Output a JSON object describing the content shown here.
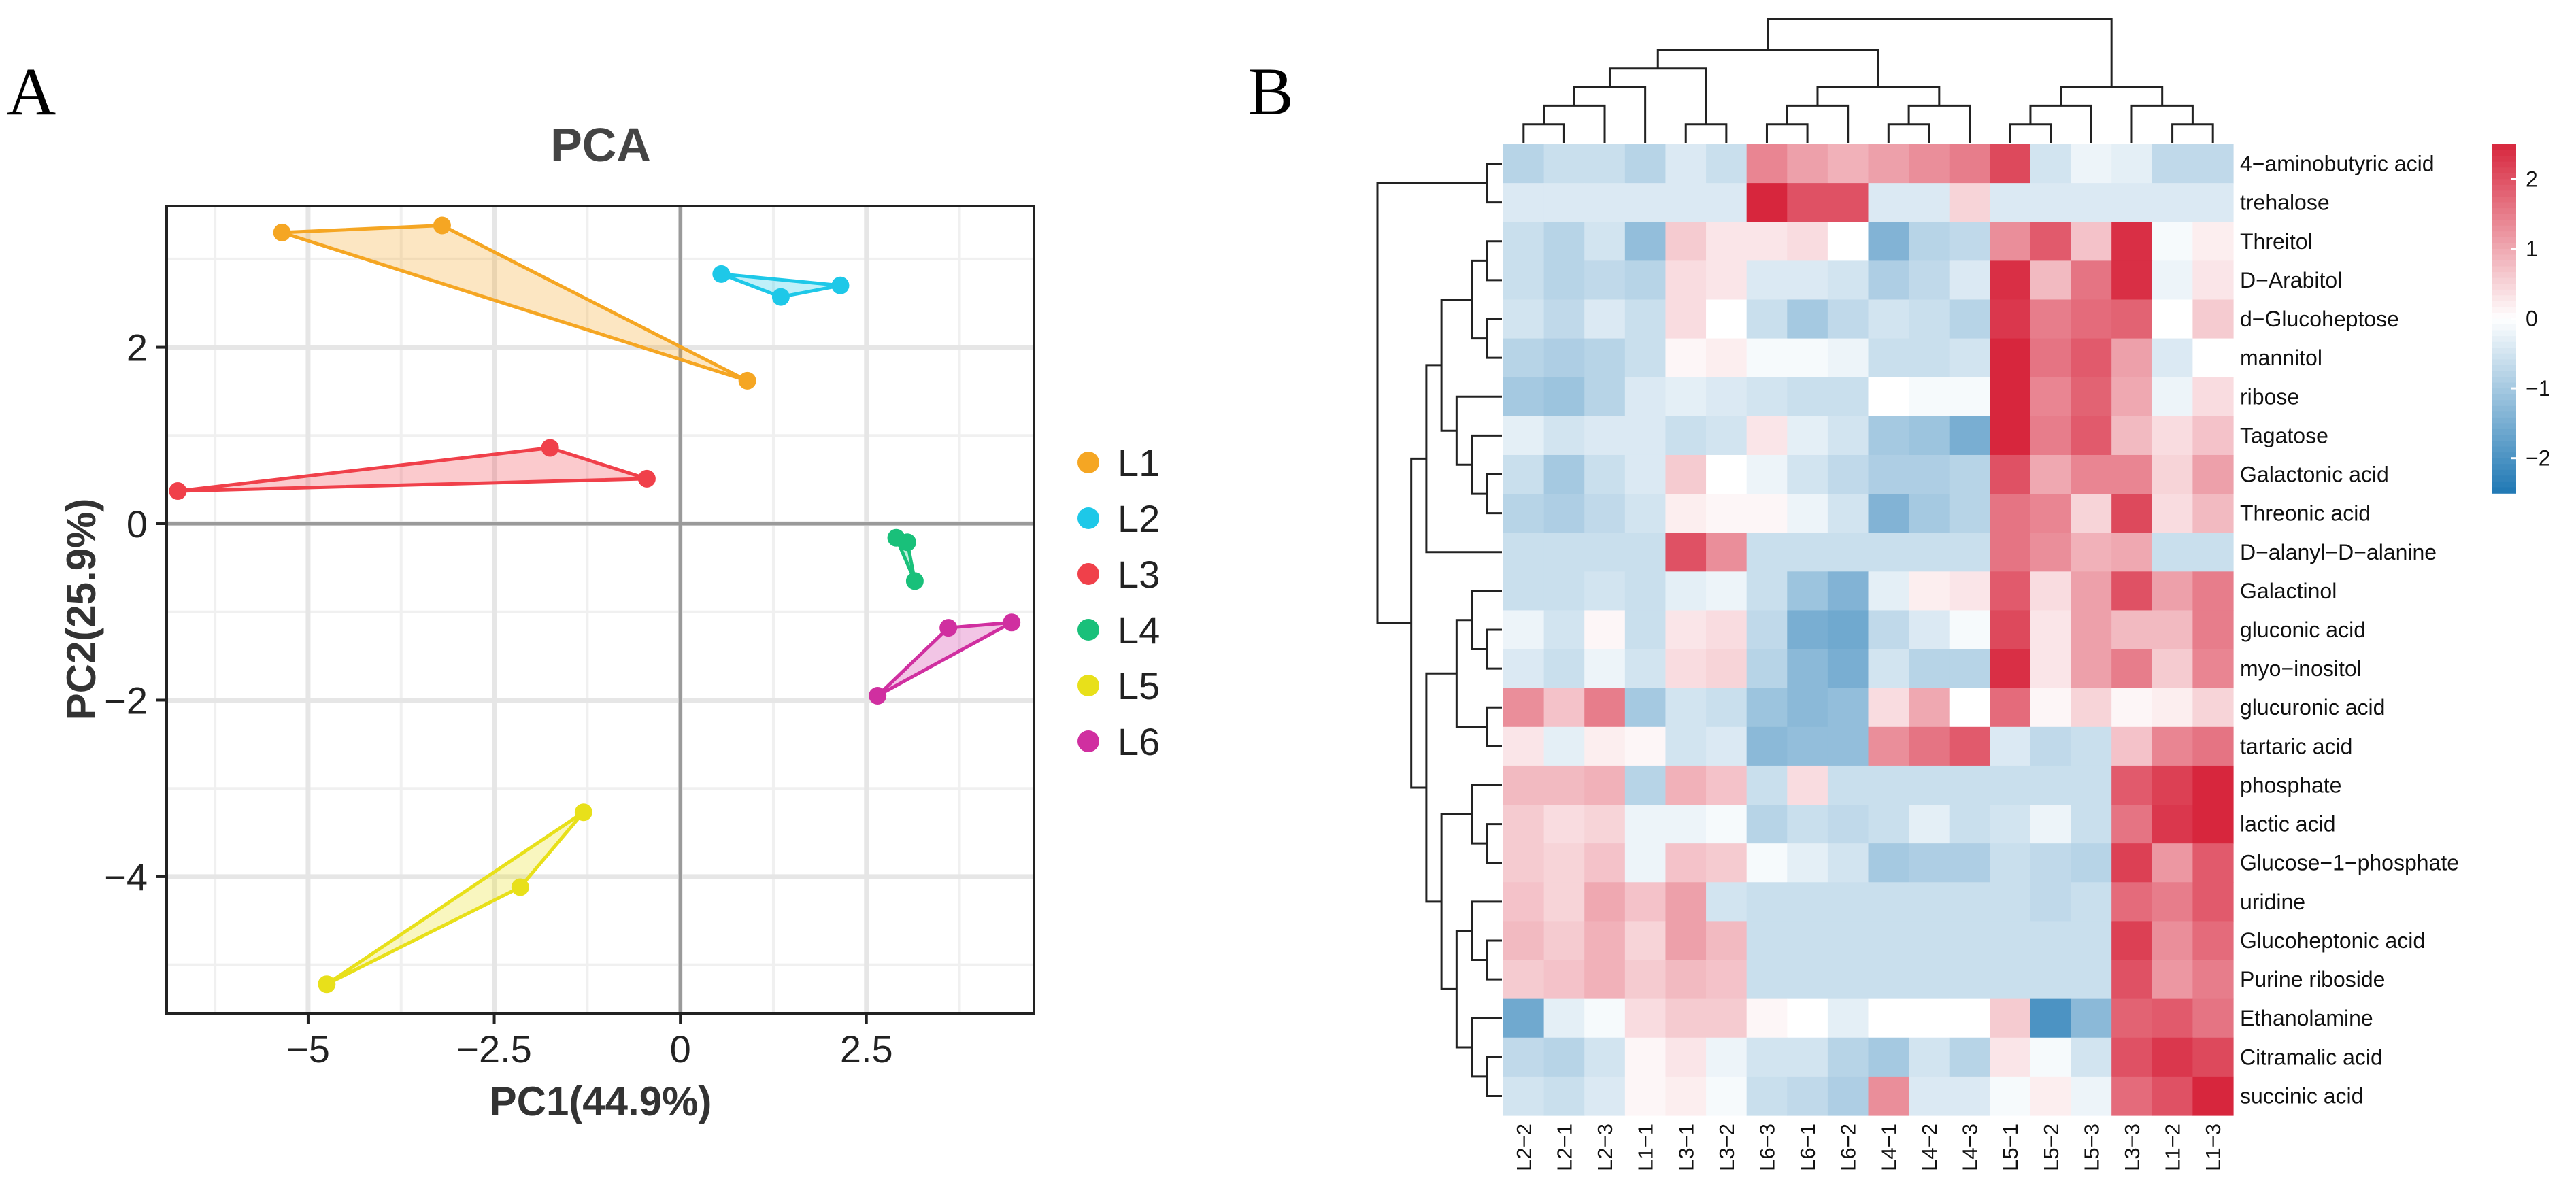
{
  "panels": {
    "a": "A",
    "b": "B"
  },
  "chart_data": [
    {
      "type": "scatter",
      "title": "PCA",
      "xlabel": "PC1(44.9%)",
      "ylabel": "PC2(25.9%)",
      "xlim": [
        -6.9,
        4.75
      ],
      "ylim": [
        -5.55,
        3.6
      ],
      "xticks": [
        -5,
        -2.5,
        0,
        2.5
      ],
      "xtick_labels": [
        "−5",
        "−2.5",
        "0",
        "2.5"
      ],
      "yticks": [
        2,
        0,
        -2,
        -4
      ],
      "ytick_labels": [
        "2",
        "0",
        "−2",
        "−4"
      ],
      "grid": true,
      "legend_position": "right",
      "series": [
        {
          "name": "L1",
          "color": "#F5A623",
          "points": [
            [
              -5.35,
              3.3
            ],
            [
              -3.2,
              3.38
            ],
            [
              0.9,
              1.62
            ]
          ]
        },
        {
          "name": "L2",
          "color": "#1EC8E8",
          "points": [
            [
              0.55,
              2.83
            ],
            [
              2.15,
              2.7
            ],
            [
              1.35,
              2.57
            ]
          ]
        },
        {
          "name": "L3",
          "color": "#F0404A",
          "points": [
            [
              -6.75,
              0.37
            ],
            [
              -1.75,
              0.86
            ],
            [
              -0.45,
              0.51
            ]
          ]
        },
        {
          "name": "L4",
          "color": "#19C07A",
          "points": [
            [
              2.9,
              -0.16
            ],
            [
              3.05,
              -0.21
            ],
            [
              3.15,
              -0.65
            ]
          ]
        },
        {
          "name": "L5",
          "color": "#E8E01A",
          "points": [
            [
              -4.75,
              -5.22
            ],
            [
              -2.15,
              -4.12
            ],
            [
              -1.3,
              -3.27
            ]
          ]
        },
        {
          "name": "L6",
          "color": "#D02FA0",
          "points": [
            [
              2.65,
              -1.95
            ],
            [
              3.6,
              -1.18
            ],
            [
              4.45,
              -1.12
            ]
          ]
        }
      ]
    },
    {
      "type": "heatmap",
      "columns": [
        "L2−2",
        "L2−1",
        "L2−3",
        "L1−1",
        "L3−1",
        "L3−2",
        "L6−3",
        "L6−1",
        "L6−2",
        "L4−1",
        "L4−2",
        "L4−3",
        "L5−1",
        "L5−2",
        "L5−3",
        "L3−3",
        "L1−2",
        "L1−3"
      ],
      "rows": [
        "4−aminobutyric acid",
        "trehalose",
        "Threitol",
        "D−Arabitol",
        "d−Glucoheptose",
        "mannitol",
        "ribose",
        "Tagatose",
        "Galactonic acid",
        "Threonic acid",
        "D−alanyl−D−alanine",
        "Galactinol",
        "gluconic acid",
        "myo−inositol",
        "glucuronic acid",
        "tartaric acid",
        "phosphate",
        "lactic acid",
        "Glucose−1−phosphate",
        "uridine",
        "Glucoheptonic acid",
        "Purine riboside",
        "Ethanolamine",
        "Citramalic acid",
        "succinic acid"
      ],
      "values": [
        [
          -0.8,
          -0.6,
          -0.6,
          -0.8,
          -0.4,
          -0.6,
          1.4,
          1.1,
          0.9,
          1.1,
          1.3,
          1.5,
          2.1,
          -0.5,
          -0.2,
          -0.3,
          -0.7,
          -0.7
        ],
        [
          -0.4,
          -0.4,
          -0.4,
          -0.4,
          -0.4,
          -0.4,
          2.6,
          2.0,
          2.0,
          -0.4,
          -0.4,
          0.5,
          -0.4,
          -0.4,
          -0.4,
          -0.4,
          -0.4,
          -0.4
        ],
        [
          -0.6,
          -0.8,
          -0.5,
          -1.2,
          0.6,
          0.3,
          0.3,
          0.4,
          0.0,
          -1.4,
          -0.8,
          -0.7,
          1.3,
          1.9,
          0.7,
          2.4,
          -0.1,
          0.2
        ],
        [
          -0.6,
          -0.8,
          -0.7,
          -0.8,
          0.4,
          0.3,
          -0.4,
          -0.4,
          -0.5,
          -0.9,
          -0.7,
          -0.4,
          2.4,
          0.8,
          1.6,
          2.4,
          -0.2,
          0.3
        ],
        [
          -0.5,
          -0.7,
          -0.4,
          -0.6,
          0.4,
          0.0,
          -0.6,
          -1.0,
          -0.7,
          -0.5,
          -0.6,
          -0.8,
          2.3,
          1.5,
          1.7,
          1.8,
          0.0,
          0.6
        ],
        [
          -0.8,
          -0.9,
          -0.8,
          -0.6,
          0.1,
          0.2,
          -0.1,
          -0.1,
          -0.2,
          -0.6,
          -0.6,
          -0.5,
          2.5,
          1.6,
          1.9,
          1.1,
          -0.4,
          0.0
        ],
        [
          -1.0,
          -1.1,
          -0.8,
          -0.4,
          -0.3,
          -0.4,
          -0.5,
          -0.6,
          -0.6,
          0.0,
          -0.1,
          -0.1,
          2.6,
          1.4,
          1.8,
          1.0,
          -0.2,
          0.4
        ],
        [
          -0.3,
          -0.5,
          -0.4,
          -0.4,
          -0.6,
          -0.5,
          0.3,
          -0.3,
          -0.5,
          -1.0,
          -1.1,
          -1.5,
          2.5,
          1.5,
          1.9,
          0.8,
          0.4,
          0.7
        ],
        [
          -0.6,
          -1.0,
          -0.6,
          -0.4,
          0.6,
          0.0,
          -0.2,
          -0.5,
          -0.7,
          -0.9,
          -0.9,
          -0.8,
          2.0,
          1.0,
          1.4,
          1.4,
          0.5,
          1.1
        ],
        [
          -0.8,
          -0.9,
          -0.7,
          -0.5,
          0.2,
          0.1,
          0.1,
          -0.2,
          -0.5,
          -1.4,
          -1.0,
          -0.8,
          1.6,
          1.4,
          0.5,
          2.1,
          0.4,
          0.8
        ],
        [
          -0.6,
          -0.6,
          -0.6,
          -0.6,
          2.0,
          1.3,
          -0.6,
          -0.6,
          -0.6,
          -0.6,
          -0.6,
          -0.6,
          1.6,
          1.3,
          0.9,
          1.0,
          -0.6,
          -0.6
        ],
        [
          -0.6,
          -0.6,
          -0.5,
          -0.6,
          -0.3,
          -0.2,
          -0.6,
          -1.1,
          -1.4,
          -0.3,
          0.2,
          0.3,
          1.9,
          0.4,
          1.1,
          2.0,
          1.1,
          1.5
        ],
        [
          -0.2,
          -0.5,
          0.1,
          -0.6,
          0.3,
          0.4,
          -0.7,
          -1.5,
          -1.6,
          -0.7,
          -0.4,
          -0.1,
          2.1,
          0.3,
          1.1,
          0.8,
          0.8,
          1.5
        ],
        [
          -0.4,
          -0.6,
          -0.2,
          -0.5,
          0.4,
          0.5,
          -0.8,
          -1.3,
          -1.5,
          -0.5,
          -0.8,
          -0.8,
          2.4,
          0.3,
          1.1,
          1.5,
          0.6,
          1.4
        ],
        [
          1.3,
          0.7,
          1.5,
          -1.0,
          -0.5,
          -0.6,
          -1.1,
          -1.3,
          -1.2,
          0.4,
          1.0,
          0.0,
          1.7,
          0.1,
          0.5,
          0.1,
          0.2,
          0.5
        ],
        [
          0.3,
          -0.3,
          0.2,
          0.1,
          -0.5,
          -0.4,
          -1.3,
          -1.2,
          -1.2,
          1.3,
          1.6,
          1.9,
          -0.4,
          -0.7,
          -0.6,
          0.7,
          1.4,
          1.6
        ],
        [
          0.8,
          0.8,
          0.9,
          -0.8,
          0.9,
          0.7,
          -0.6,
          0.4,
          -0.6,
          -0.6,
          -0.6,
          -0.6,
          -0.6,
          -0.6,
          -0.6,
          1.9,
          2.2,
          2.6
        ],
        [
          0.6,
          0.4,
          0.5,
          -0.2,
          -0.2,
          -0.1,
          -0.8,
          -0.6,
          -0.7,
          -0.6,
          -0.3,
          -0.6,
          -0.5,
          -0.2,
          -0.6,
          1.6,
          2.3,
          3.0
        ],
        [
          0.6,
          0.5,
          0.7,
          -0.2,
          0.7,
          0.6,
          -0.1,
          -0.3,
          -0.5,
          -1.0,
          -0.9,
          -0.9,
          -0.6,
          -0.7,
          -0.8,
          2.2,
          1.2,
          1.9
        ],
        [
          0.7,
          0.5,
          1.0,
          0.7,
          1.1,
          -0.5,
          -0.6,
          -0.6,
          -0.6,
          -0.6,
          -0.6,
          -0.6,
          -0.6,
          -0.7,
          -0.6,
          1.7,
          1.5,
          1.9
        ],
        [
          0.8,
          0.6,
          0.9,
          0.5,
          1.1,
          0.8,
          -0.6,
          -0.6,
          -0.6,
          -0.6,
          -0.6,
          -0.6,
          -0.6,
          -0.6,
          -0.6,
          2.2,
          1.3,
          1.7
        ],
        [
          0.6,
          0.7,
          0.9,
          0.6,
          0.8,
          0.7,
          -0.6,
          -0.6,
          -0.6,
          -0.6,
          -0.6,
          -0.6,
          -0.6,
          -0.6,
          -0.6,
          2.0,
          1.2,
          1.5
        ],
        [
          -1.6,
          -0.3,
          -0.1,
          0.4,
          0.6,
          0.6,
          0.1,
          0.0,
          -0.3,
          0.0,
          0.0,
          0.0,
          0.6,
          -2.0,
          -1.3,
          1.8,
          1.9,
          1.6
        ],
        [
          -0.7,
          -0.8,
          -0.5,
          0.1,
          0.3,
          -0.2,
          -0.5,
          -0.5,
          -0.8,
          -1.0,
          -0.5,
          -0.8,
          0.3,
          -0.1,
          -0.5,
          2.0,
          2.3,
          2.1
        ],
        [
          -0.5,
          -0.6,
          -0.4,
          0.1,
          0.2,
          -0.1,
          -0.6,
          -0.7,
          -0.9,
          1.3,
          -0.4,
          -0.4,
          -0.1,
          0.2,
          -0.2,
          1.7,
          2.0,
          2.7
        ]
      ],
      "color_scale": {
        "low": "#1F78B4",
        "mid": "#FFFFFF",
        "high": "#D7263D",
        "ticks": [
          2,
          1,
          0,
          -1,
          -2
        ],
        "tick_labels": [
          "2",
          "1",
          "0",
          "−1",
          "−2"
        ],
        "range": [
          -2.5,
          2.5
        ]
      },
      "row_dendrogram": "left",
      "column_dendrogram": "top"
    }
  ]
}
